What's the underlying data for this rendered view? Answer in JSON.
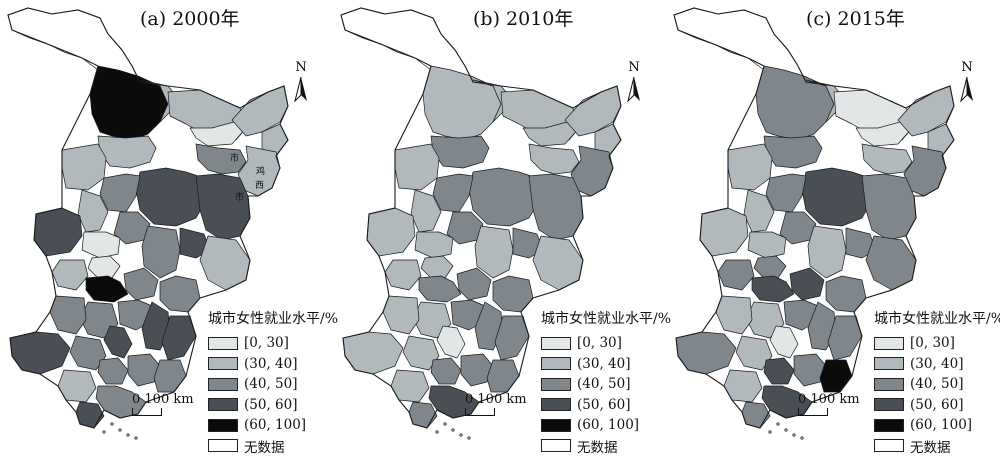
{
  "colors": {
    "c0": "#e2e6e6",
    "c1": "#b2b9bc",
    "c2": "#7f878d",
    "c3": "#494f54",
    "c4": "#0b0b0b",
    "nodata": "#ffffff",
    "stroke": "#1a1a1a"
  },
  "legend": {
    "title": "城市女性就业水平/%",
    "items": [
      {
        "label": "[0, 30]",
        "key": "c0"
      },
      {
        "label": "(30, 40]",
        "key": "c1"
      },
      {
        "label": "(40, 50]",
        "key": "c2"
      },
      {
        "label": "(50, 60]",
        "key": "c3"
      },
      {
        "label": "(60, 100]",
        "key": "c4"
      },
      {
        "label": "无数据",
        "key": "nodata"
      }
    ]
  },
  "scale_label": "0 100 km",
  "north_label": "N",
  "panels": [
    {
      "title": "(a) 2000年",
      "map_labels": [
        "市",
        "鸡",
        "西",
        "市"
      ],
      "regions": [
        "nodata",
        "c4",
        "c1",
        "c1",
        "c0",
        "c1",
        "c1",
        "c1",
        "c2",
        "c1",
        "c1",
        "c3",
        "c2",
        "c3",
        "c1",
        "c2",
        "c0",
        "c3",
        "c2",
        "c3",
        "c1",
        "c0",
        "c1",
        "c4",
        "c2",
        "c2",
        "c2",
        "c3",
        "c2",
        "c2",
        "c3",
        "c3",
        "c2",
        "c3",
        "c2",
        "c2",
        "c2",
        "c2",
        "c1",
        "c3"
      ]
    },
    {
      "title": "(b) 2010年",
      "map_labels": [],
      "regions": [
        "nodata",
        "c1",
        "c1",
        "c1",
        "c1",
        "c1",
        "c1",
        "c2",
        "c1",
        "c2",
        "c1",
        "c2",
        "c2",
        "c2",
        "c1",
        "c2",
        "c1",
        "c1",
        "c1",
        "c2",
        "c1",
        "c1",
        "c1",
        "c2",
        "c2",
        "c2",
        "c2",
        "c2",
        "c1",
        "c1",
        "c2",
        "c0",
        "c1",
        "c1",
        "c2",
        "c2",
        "c2",
        "c3",
        "c1",
        "c2"
      ]
    },
    {
      "title": "(c) 2015年",
      "map_labels": [],
      "regions": [
        "nodata",
        "c2",
        "c1",
        "c0",
        "c0",
        "c1",
        "c1",
        "c2",
        "c1",
        "c2",
        "c1",
        "c3",
        "c2",
        "c2",
        "c1",
        "c2",
        "c1",
        "c1",
        "c1",
        "c2",
        "c2",
        "c2",
        "c2",
        "c3",
        "c3",
        "c2",
        "c2",
        "c2",
        "c1",
        "c1",
        "c2",
        "c0",
        "c1",
        "c2",
        "c3",
        "c2",
        "c4",
        "c3",
        "c1",
        "c2"
      ]
    }
  ]
}
